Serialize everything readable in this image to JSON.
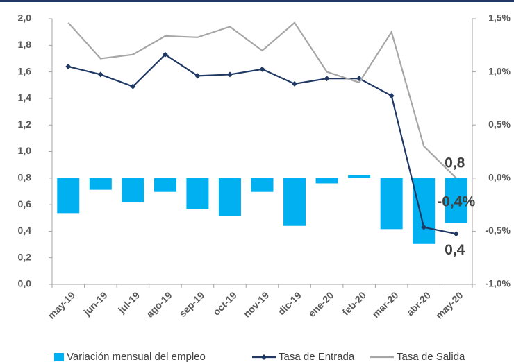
{
  "chart_data": {
    "type": "bar-line",
    "categories": [
      "may-19",
      "jun-19",
      "jul-19",
      "ago-19",
      "sep-19",
      "oct-19",
      "nov-19",
      "dic-19",
      "ene-20",
      "feb-20",
      "mar-20",
      "abr-20",
      "may-20"
    ],
    "series": [
      {
        "name": "Variación mensual del empleo",
        "type": "bar",
        "axis": "y2",
        "color": "#00b0f0",
        "values": [
          -0.33,
          -0.11,
          -0.23,
          -0.13,
          -0.29,
          -0.36,
          -0.13,
          -0.45,
          -0.05,
          0.03,
          -0.48,
          -0.62,
          -0.42
        ],
        "value_labels": [
          null,
          null,
          null,
          null,
          null,
          null,
          null,
          null,
          null,
          null,
          null,
          null,
          "-0,4%"
        ]
      },
      {
        "name": "Tasa de Entrada",
        "type": "line",
        "axis": "y",
        "color": "#1f3864",
        "marker": "diamond",
        "values": [
          1.64,
          1.58,
          1.49,
          1.73,
          1.57,
          1.58,
          1.62,
          1.51,
          1.55,
          1.55,
          1.42,
          0.43,
          0.38
        ],
        "value_labels": [
          null,
          null,
          null,
          null,
          null,
          null,
          null,
          null,
          null,
          null,
          null,
          null,
          "0,4"
        ]
      },
      {
        "name": "Tasa de Salida",
        "type": "line",
        "axis": "y",
        "color": "#a6a6a6",
        "values": [
          1.97,
          1.7,
          1.73,
          1.87,
          1.86,
          1.94,
          1.76,
          1.97,
          1.6,
          1.52,
          1.9,
          1.04,
          0.8
        ],
        "value_labels": [
          null,
          null,
          null,
          null,
          null,
          null,
          null,
          null,
          null,
          null,
          null,
          null,
          "0,8"
        ]
      }
    ],
    "ylim": [
      0,
      2
    ],
    "yticks": [
      {
        "value": 0,
        "label": "0,0"
      },
      {
        "value": 0.2,
        "label": "0,2"
      },
      {
        "value": 0.4,
        "label": "0,4"
      },
      {
        "value": 0.6,
        "label": "0,6"
      },
      {
        "value": 0.8,
        "label": "0,8"
      },
      {
        "value": 1,
        "label": "1,0"
      },
      {
        "value": 1.2,
        "label": "1,2"
      },
      {
        "value": 1.4,
        "label": "1,4"
      },
      {
        "value": 1.6,
        "label": "1,6"
      },
      {
        "value": 1.8,
        "label": "1,8"
      },
      {
        "value": 2,
        "label": "2,0"
      }
    ],
    "y2lim": [
      -1,
      1.5
    ],
    "y2ticks": [
      {
        "value": -1,
        "label": "-1,0%"
      },
      {
        "value": -0.5,
        "label": "-0,5%"
      },
      {
        "value": 0,
        "label": "0,0%"
      },
      {
        "value": 0.5,
        "label": "0,5%"
      },
      {
        "value": 1,
        "label": "1,0%"
      },
      {
        "value": 1.5,
        "label": "1,5%"
      }
    ],
    "grid": false,
    "legend": "bottom"
  }
}
